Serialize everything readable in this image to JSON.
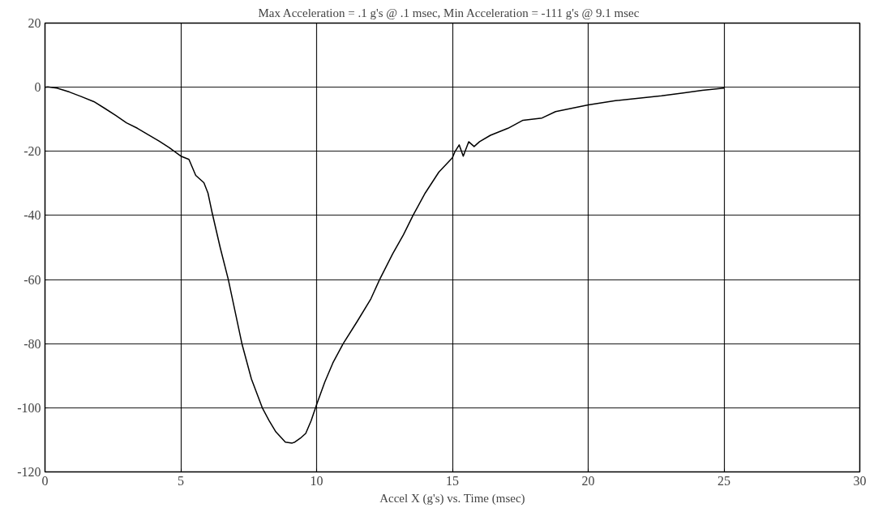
{
  "chart_data": {
    "type": "line",
    "title": "Max Acceleration = .1 g's @  .1 msec, Min Acceleration = -111 g's @  9.1 msec",
    "xlabel": "Accel X (g's) vs. Time (msec)",
    "xlim": [
      0,
      30
    ],
    "ylim": [
      -120,
      20
    ],
    "xticks": [
      0,
      5,
      10,
      15,
      20,
      25,
      30
    ],
    "yticks": [
      -120,
      -100,
      -80,
      -60,
      -40,
      -20,
      0,
      20
    ],
    "grid": true,
    "marker": "none",
    "line_style": "solid",
    "series": [
      {
        "color": "#000000",
        "x": [
          0,
          0.1,
          0.44,
          0.9,
          1.33,
          1.8,
          2.2,
          2.6,
          3.0,
          3.4,
          3.78,
          4.2,
          4.57,
          5.0,
          5.3,
          5.55,
          5.85,
          6.0,
          6.15,
          6.45,
          6.75,
          7.0,
          7.25,
          7.6,
          8.0,
          8.25,
          8.5,
          8.85,
          9.1,
          9.2,
          9.4,
          9.6,
          9.8,
          10.0,
          10.3,
          10.6,
          10.98,
          11.5,
          12.0,
          12.32,
          12.8,
          13.2,
          13.55,
          14.0,
          14.5,
          15.0,
          15.1,
          15.25,
          15.4,
          15.6,
          15.8,
          16.0,
          16.4,
          17.05,
          17.6,
          18.3,
          18.8,
          20.0,
          21.0,
          22.0,
          22.7,
          23.5,
          24.2,
          25.0
        ],
        "values": [
          0,
          0.1,
          -0.3,
          -1.5,
          -2.9,
          -4.5,
          -6.6,
          -8.8,
          -11.1,
          -12.8,
          -14.7,
          -16.8,
          -18.8,
          -21.5,
          -22.5,
          -27.5,
          -29.8,
          -33,
          -39,
          -50,
          -60,
          -70,
          -80,
          -91,
          -100,
          -104,
          -107.5,
          -110.7,
          -111,
          -110.7,
          -109.5,
          -108,
          -104,
          -99,
          -92,
          -86,
          -80,
          -73,
          -66,
          -60,
          -52,
          -46,
          -40,
          -33,
          -26.5,
          -22,
          -20,
          -18,
          -21.5,
          -17,
          -18.5,
          -17,
          -15,
          -12.8,
          -10.3,
          -9.6,
          -7.6,
          -5.5,
          -4.2,
          -3.3,
          -2.7,
          -1.8,
          -1,
          -0.3
        ]
      }
    ]
  }
}
